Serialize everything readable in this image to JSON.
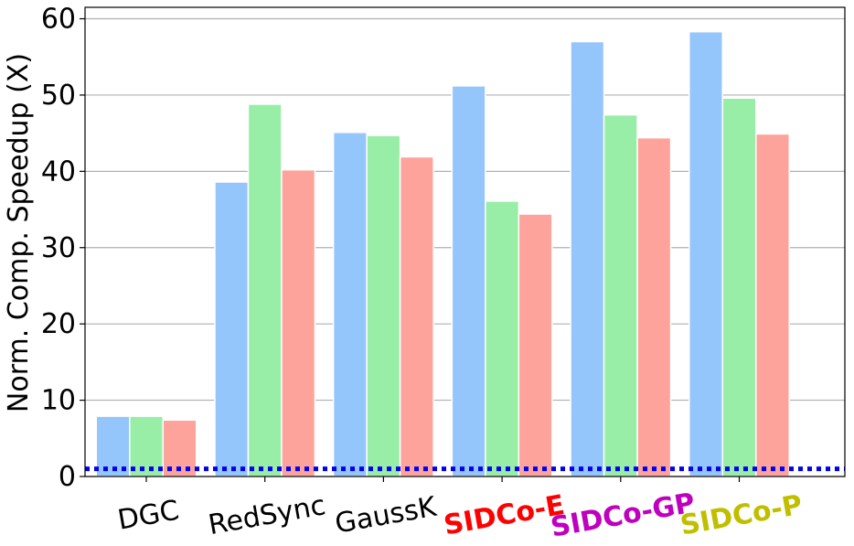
{
  "chart_data": {
    "type": "bar",
    "title": "",
    "xlabel": "",
    "ylabel": "Norm. Comp. Speedup (X)",
    "ylim": [
      0,
      61.5
    ],
    "yticks": [
      "0",
      "10",
      "20",
      "30",
      "40",
      "50",
      "60"
    ],
    "grid": "horizontal",
    "categories": [
      "DGC",
      "RedSync",
      "GaussK",
      "SIDCo-E",
      "SIDCo-GP",
      "SIDCo-P"
    ],
    "category_label_colors": [
      "#000000",
      "#000000",
      "#000000",
      "#ff0000",
      "#bf00bf",
      "#bfbf00"
    ],
    "category_label_bold": [
      false,
      false,
      false,
      true,
      true,
      true
    ],
    "series": [
      {
        "color": "#94c5fb",
        "values": [
          7.9,
          38.6,
          45.1,
          51.2,
          57.0,
          58.3
        ]
      },
      {
        "color": "#98eda7",
        "values": [
          7.9,
          48.8,
          44.7,
          36.1,
          47.4,
          49.6
        ]
      },
      {
        "color": "#fea29c",
        "values": [
          7.4,
          40.2,
          41.9,
          34.4,
          44.4,
          44.9
        ]
      }
    ],
    "reference_line": {
      "value": 1.0,
      "color": "#0000ee",
      "style": "dotted"
    }
  }
}
